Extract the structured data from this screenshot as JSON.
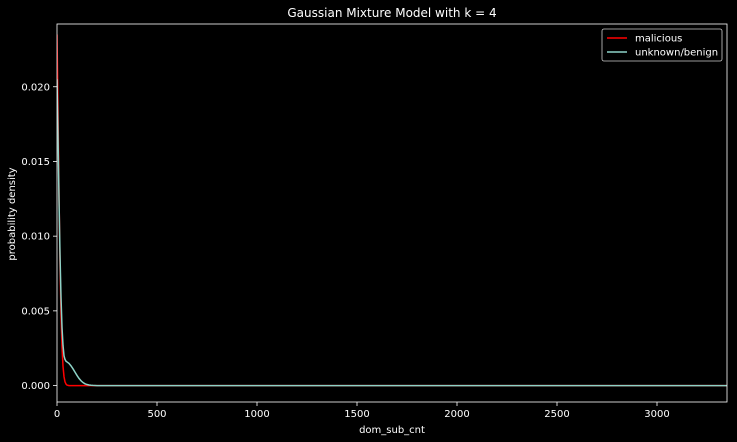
{
  "chart_data": {
    "type": "line",
    "title": "Gaussian Mixture Model with k = 4",
    "xlabel": "dom_sub_cnt",
    "ylabel": "probability density",
    "xlim": [
      0,
      3350
    ],
    "ylim": [
      -0.0011,
      0.0242
    ],
    "xticks": [
      0,
      500,
      1000,
      1500,
      2000,
      2500,
      3000
    ],
    "yticks": [
      0.0,
      0.005,
      0.01,
      0.015,
      0.02
    ],
    "ytick_labels": [
      "0.000",
      "0.005",
      "0.010",
      "0.015",
      "0.020"
    ],
    "grid": false,
    "legend_position": "top-right",
    "background": "#000000",
    "series": [
      {
        "name": "malicious",
        "color": "#ff0000",
        "x": [
          0,
          5,
          10,
          15,
          20,
          25,
          30,
          35,
          40,
          45,
          50,
          60,
          80,
          100,
          150,
          200,
          500,
          1000,
          2000,
          3350
        ],
        "y": [
          0.0235,
          0.0185,
          0.0128,
          0.0082,
          0.0048,
          0.0026,
          0.0013,
          0.0006,
          0.00025,
          0.0001,
          3e-05,
          0.0,
          0.0,
          0.0,
          0.0,
          0.0,
          0.0,
          0.0,
          0.0,
          0.0
        ]
      },
      {
        "name": "unknown/benign",
        "color": "#8dd3c7",
        "x": [
          0,
          5,
          10,
          15,
          20,
          25,
          30,
          35,
          40,
          45,
          50,
          60,
          70,
          80,
          90,
          100,
          110,
          120,
          130,
          140,
          150,
          160,
          170,
          180,
          190,
          200,
          250,
          500,
          1000,
          2000,
          3350
        ],
        "y": [
          0.0205,
          0.0168,
          0.0125,
          0.0088,
          0.0059,
          0.0039,
          0.0027,
          0.002,
          0.00175,
          0.00163,
          0.00158,
          0.00148,
          0.00132,
          0.00112,
          0.0009,
          0.00068,
          0.00048,
          0.00032,
          0.0002,
          0.00012,
          7e-05,
          4e-05,
          2e-05,
          1e-05,
          5e-06,
          0.0,
          0.0,
          0.0,
          0.0,
          0.0,
          0.0
        ]
      }
    ]
  }
}
